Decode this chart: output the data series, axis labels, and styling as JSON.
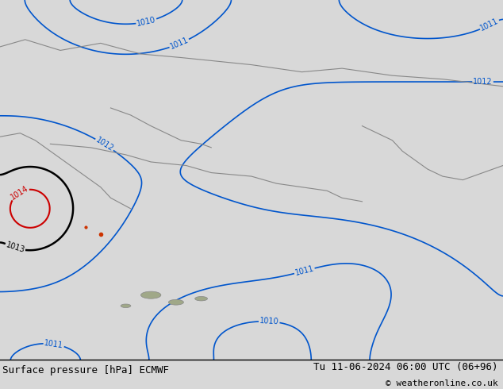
{
  "title_left": "Surface pressure [hPa] ECMWF",
  "title_right": "Tu 11-06-2024 06:00 UTC (06+96)",
  "copyright": "© weatheronline.co.uk",
  "bg_color": "#b8d878",
  "bottom_bar_color": "#d8d8d8",
  "text_color_black": "#000000",
  "text_color_blue": "#0055cc",
  "text_color_red": "#cc0000",
  "coast_color": "#888888",
  "font_size_bottom": 9,
  "figsize": [
    6.34,
    4.9
  ],
  "dpi": 100
}
